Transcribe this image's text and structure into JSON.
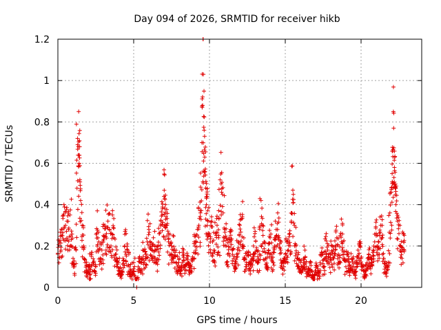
{
  "chart_data": {
    "type": "scatter",
    "title": "Day 094 of 2026, SRMTID for receiver hikb",
    "xlabel": "GPS time / hours",
    "ylabel": "SRMTID / TECUs",
    "xlim": [
      0,
      24
    ],
    "ylim": [
      0,
      1.2
    ],
    "x_ticks": [
      0,
      5,
      10,
      15,
      20
    ],
    "x_tick_labels": [
      "0",
      "5",
      "10",
      "15",
      "20"
    ],
    "y_ticks": [
      0,
      0.2,
      0.4,
      0.6,
      0.8,
      1.0,
      1.2
    ],
    "y_tick_labels": [
      "0",
      "0.2",
      "0.4",
      "0.6",
      "0.8",
      "1",
      "1.2"
    ],
    "grid": true,
    "marker": "plus",
    "color": "#e00000",
    "series": [
      {
        "name": "SRMTID",
        "points": [
          [
            0.0,
            0.16
          ],
          [
            0.1,
            0.22
          ],
          [
            0.2,
            0.18
          ],
          [
            0.3,
            0.25
          ],
          [
            0.4,
            0.4
          ],
          [
            0.5,
            0.3
          ],
          [
            0.6,
            0.32
          ],
          [
            0.7,
            0.28
          ],
          [
            0.8,
            0.35
          ],
          [
            0.9,
            0.2
          ],
          [
            1.0,
            0.14
          ],
          [
            1.1,
            0.1
          ],
          [
            1.2,
            0.18
          ],
          [
            1.3,
            0.72
          ],
          [
            1.35,
            0.68
          ],
          [
            1.4,
            0.6
          ],
          [
            1.45,
            0.52
          ],
          [
            1.5,
            0.42
          ],
          [
            1.6,
            0.3
          ],
          [
            1.7,
            0.2
          ],
          [
            1.8,
            0.12
          ],
          [
            1.9,
            0.08
          ],
          [
            2.0,
            0.1
          ],
          [
            2.1,
            0.06
          ],
          [
            2.2,
            0.15
          ],
          [
            2.3,
            0.12
          ],
          [
            2.4,
            0.08
          ],
          [
            2.5,
            0.1
          ],
          [
            2.6,
            0.37
          ],
          [
            2.7,
            0.22
          ],
          [
            2.8,
            0.14
          ],
          [
            2.9,
            0.18
          ],
          [
            3.0,
            0.25
          ],
          [
            3.1,
            0.3
          ],
          [
            3.2,
            0.26
          ],
          [
            3.3,
            0.32
          ],
          [
            3.4,
            0.28
          ],
          [
            3.5,
            0.2
          ],
          [
            3.6,
            0.35
          ],
          [
            3.7,
            0.24
          ],
          [
            3.8,
            0.16
          ],
          [
            3.9,
            0.1
          ],
          [
            4.0,
            0.12
          ],
          [
            4.1,
            0.08
          ],
          [
            4.2,
            0.06
          ],
          [
            4.3,
            0.14
          ],
          [
            4.4,
            0.2
          ],
          [
            4.5,
            0.26
          ],
          [
            4.6,
            0.18
          ],
          [
            4.7,
            0.1
          ],
          [
            4.8,
            0.06
          ],
          [
            4.9,
            0.08
          ],
          [
            5.0,
            0.12
          ],
          [
            5.1,
            0.05
          ],
          [
            5.2,
            0.0
          ],
          [
            5.3,
            0.1
          ],
          [
            5.4,
            0.14
          ],
          [
            5.5,
            0.08
          ],
          [
            5.6,
            0.18
          ],
          [
            5.7,
            0.12
          ],
          [
            5.8,
            0.16
          ],
          [
            5.9,
            0.22
          ],
          [
            6.0,
            0.28
          ],
          [
            6.1,
            0.2
          ],
          [
            6.2,
            0.15
          ],
          [
            6.3,
            0.24
          ],
          [
            6.4,
            0.18
          ],
          [
            6.5,
            0.12
          ],
          [
            6.6,
            0.2
          ],
          [
            6.7,
            0.26
          ],
          [
            6.8,
            0.32
          ],
          [
            6.9,
            0.38
          ],
          [
            7.0,
            0.44
          ],
          [
            7.05,
            0.43
          ],
          [
            7.1,
            0.4
          ],
          [
            7.2,
            0.3
          ],
          [
            7.3,
            0.22
          ],
          [
            7.4,
            0.16
          ],
          [
            7.5,
            0.2
          ],
          [
            7.6,
            0.25
          ],
          [
            7.7,
            0.18
          ],
          [
            7.8,
            0.12
          ],
          [
            7.9,
            0.1
          ],
          [
            8.0,
            0.14
          ],
          [
            8.1,
            0.08
          ],
          [
            8.2,
            0.12
          ],
          [
            8.3,
            0.16
          ],
          [
            8.4,
            0.1
          ],
          [
            8.5,
            0.14
          ],
          [
            8.6,
            0.12
          ],
          [
            8.7,
            0.08
          ],
          [
            8.8,
            0.1
          ],
          [
            8.9,
            0.14
          ],
          [
            9.0,
            0.22
          ],
          [
            9.1,
            0.18
          ],
          [
            9.2,
            0.28
          ],
          [
            9.3,
            0.3
          ],
          [
            9.4,
            0.36
          ],
          [
            9.5,
            0.7
          ],
          [
            9.55,
            0.88
          ],
          [
            9.6,
            1.03
          ],
          [
            9.65,
            0.76
          ],
          [
            9.7,
            0.56
          ],
          [
            9.75,
            0.48
          ],
          [
            9.8,
            0.4
          ],
          [
            9.85,
            0.44
          ],
          [
            9.9,
            0.32
          ],
          [
            10.0,
            0.26
          ],
          [
            10.1,
            0.3
          ],
          [
            10.2,
            0.22
          ],
          [
            10.3,
            0.18
          ],
          [
            10.4,
            0.26
          ],
          [
            10.5,
            0.3
          ],
          [
            10.6,
            0.24
          ],
          [
            10.7,
            0.52
          ],
          [
            10.8,
            0.46
          ],
          [
            10.9,
            0.36
          ],
          [
            11.0,
            0.28
          ],
          [
            11.1,
            0.2
          ],
          [
            11.2,
            0.16
          ],
          [
            11.3,
            0.24
          ],
          [
            11.4,
            0.28
          ],
          [
            11.5,
            0.18
          ],
          [
            11.6,
            0.14
          ],
          [
            11.7,
            0.1
          ],
          [
            11.8,
            0.16
          ],
          [
            11.9,
            0.22
          ],
          [
            12.0,
            0.3
          ],
          [
            12.1,
            0.33
          ],
          [
            12.2,
            0.2
          ],
          [
            12.3,
            0.14
          ],
          [
            12.4,
            0.1
          ],
          [
            12.5,
            0.16
          ],
          [
            12.6,
            0.12
          ],
          [
            12.7,
            0.08
          ],
          [
            12.8,
            0.14
          ],
          [
            12.9,
            0.2
          ],
          [
            13.0,
            0.26
          ],
          [
            13.1,
            0.18
          ],
          [
            13.2,
            0.12
          ],
          [
            13.3,
            0.16
          ],
          [
            13.4,
            0.42
          ],
          [
            13.5,
            0.3
          ],
          [
            13.6,
            0.22
          ],
          [
            13.7,
            0.14
          ],
          [
            13.8,
            0.1
          ],
          [
            13.9,
            0.18
          ],
          [
            14.0,
            0.24
          ],
          [
            14.1,
            0.16
          ],
          [
            14.2,
            0.12
          ],
          [
            14.3,
            0.2
          ],
          [
            14.4,
            0.28
          ],
          [
            14.5,
            0.36
          ],
          [
            14.6,
            0.24
          ],
          [
            14.7,
            0.18
          ],
          [
            14.8,
            0.12
          ],
          [
            14.9,
            0.1
          ],
          [
            15.0,
            0.16
          ],
          [
            15.1,
            0.22
          ],
          [
            15.2,
            0.18
          ],
          [
            15.3,
            0.26
          ],
          [
            15.4,
            0.32
          ],
          [
            15.5,
            0.47
          ],
          [
            15.6,
            0.3
          ],
          [
            15.7,
            0.2
          ],
          [
            15.8,
            0.14
          ],
          [
            15.9,
            0.1
          ],
          [
            16.0,
            0.12
          ],
          [
            16.1,
            0.08
          ],
          [
            16.2,
            0.14
          ],
          [
            16.3,
            0.18
          ],
          [
            16.4,
            0.1
          ],
          [
            16.5,
            0.06
          ],
          [
            16.6,
            0.08
          ],
          [
            16.7,
            0.12
          ],
          [
            16.8,
            0.06
          ],
          [
            16.9,
            0.04
          ],
          [
            17.0,
            0.08
          ],
          [
            17.1,
            0.1
          ],
          [
            17.2,
            0.06
          ],
          [
            17.3,
            0.12
          ],
          [
            17.4,
            0.16
          ],
          [
            17.5,
            0.1
          ],
          [
            17.6,
            0.14
          ],
          [
            17.7,
            0.26
          ],
          [
            17.8,
            0.18
          ],
          [
            17.9,
            0.12
          ],
          [
            18.0,
            0.16
          ],
          [
            18.1,
            0.2
          ],
          [
            18.2,
            0.14
          ],
          [
            18.3,
            0.18
          ],
          [
            18.4,
            0.24
          ],
          [
            18.5,
            0.16
          ],
          [
            18.6,
            0.12
          ],
          [
            18.7,
            0.33
          ],
          [
            18.8,
            0.22
          ],
          [
            18.9,
            0.14
          ],
          [
            19.0,
            0.1
          ],
          [
            19.1,
            0.16
          ],
          [
            19.2,
            0.12
          ],
          [
            19.3,
            0.08
          ],
          [
            19.4,
            0.14
          ],
          [
            19.5,
            0.1
          ],
          [
            19.6,
            0.06
          ],
          [
            19.7,
            0.12
          ],
          [
            19.8,
            0.18
          ],
          [
            19.9,
            0.22
          ],
          [
            20.0,
            0.14
          ],
          [
            20.1,
            0.1
          ],
          [
            20.2,
            0.06
          ],
          [
            20.3,
            0.08
          ],
          [
            20.4,
            0.12
          ],
          [
            20.5,
            0.16
          ],
          [
            20.6,
            0.1
          ],
          [
            20.7,
            0.14
          ],
          [
            20.8,
            0.18
          ],
          [
            20.9,
            0.22
          ],
          [
            21.0,
            0.26
          ],
          [
            21.1,
            0.2
          ],
          [
            21.2,
            0.16
          ],
          [
            21.3,
            0.3
          ],
          [
            21.4,
            0.24
          ],
          [
            21.5,
            0.14
          ],
          [
            21.6,
            0.1
          ],
          [
            21.7,
            0.08
          ],
          [
            21.8,
            0.12
          ],
          [
            21.9,
            0.36
          ],
          [
            22.0,
            0.46
          ],
          [
            22.05,
            0.55
          ],
          [
            22.1,
            0.66
          ],
          [
            22.15,
            0.77
          ],
          [
            22.2,
            0.58
          ],
          [
            22.25,
            0.48
          ],
          [
            22.3,
            0.4
          ],
          [
            22.4,
            0.32
          ],
          [
            22.5,
            0.26
          ],
          [
            22.6,
            0.2
          ],
          [
            22.7,
            0.14
          ],
          [
            22.8,
            0.26
          ],
          [
            22.85,
            0.18
          ]
        ]
      }
    ]
  }
}
